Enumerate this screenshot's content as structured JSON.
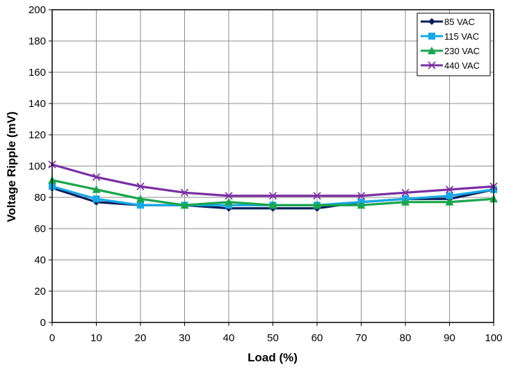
{
  "chart_data": {
    "type": "line",
    "xlabel": "Load (%)",
    "ylabel": "Voltage Ripple (mV)",
    "xlim": [
      0,
      100
    ],
    "ylim": [
      0,
      200
    ],
    "x_ticks": [
      0,
      10,
      20,
      30,
      40,
      50,
      60,
      70,
      80,
      90,
      100
    ],
    "y_ticks": [
      0,
      20,
      40,
      60,
      80,
      100,
      120,
      140,
      160,
      180,
      200
    ],
    "grid": true,
    "legend_position": "top-right",
    "x": [
      0,
      10,
      20,
      30,
      40,
      50,
      60,
      70,
      80,
      90,
      100
    ],
    "series": [
      {
        "name": "85 VAC",
        "color": "#0a1f5c",
        "marker": "diamond",
        "values": [
          86,
          77,
          75,
          75,
          73,
          73,
          73,
          77,
          79,
          79,
          85
        ]
      },
      {
        "name": "115 VAC",
        "color": "#17a8e6",
        "marker": "square",
        "values": [
          87,
          79,
          75,
          75,
          75,
          75,
          75,
          77,
          79,
          81,
          85
        ]
      },
      {
        "name": "230 VAC",
        "color": "#1aa64b",
        "marker": "triangle",
        "values": [
          91,
          85,
          79,
          75,
          77,
          75,
          75,
          75,
          77,
          77,
          79
        ]
      },
      {
        "name": "440 VAC",
        "color": "#7a2fa3",
        "marker": "x",
        "values": [
          101,
          93,
          87,
          83,
          81,
          81,
          81,
          81,
          83,
          85,
          87
        ]
      }
    ]
  }
}
